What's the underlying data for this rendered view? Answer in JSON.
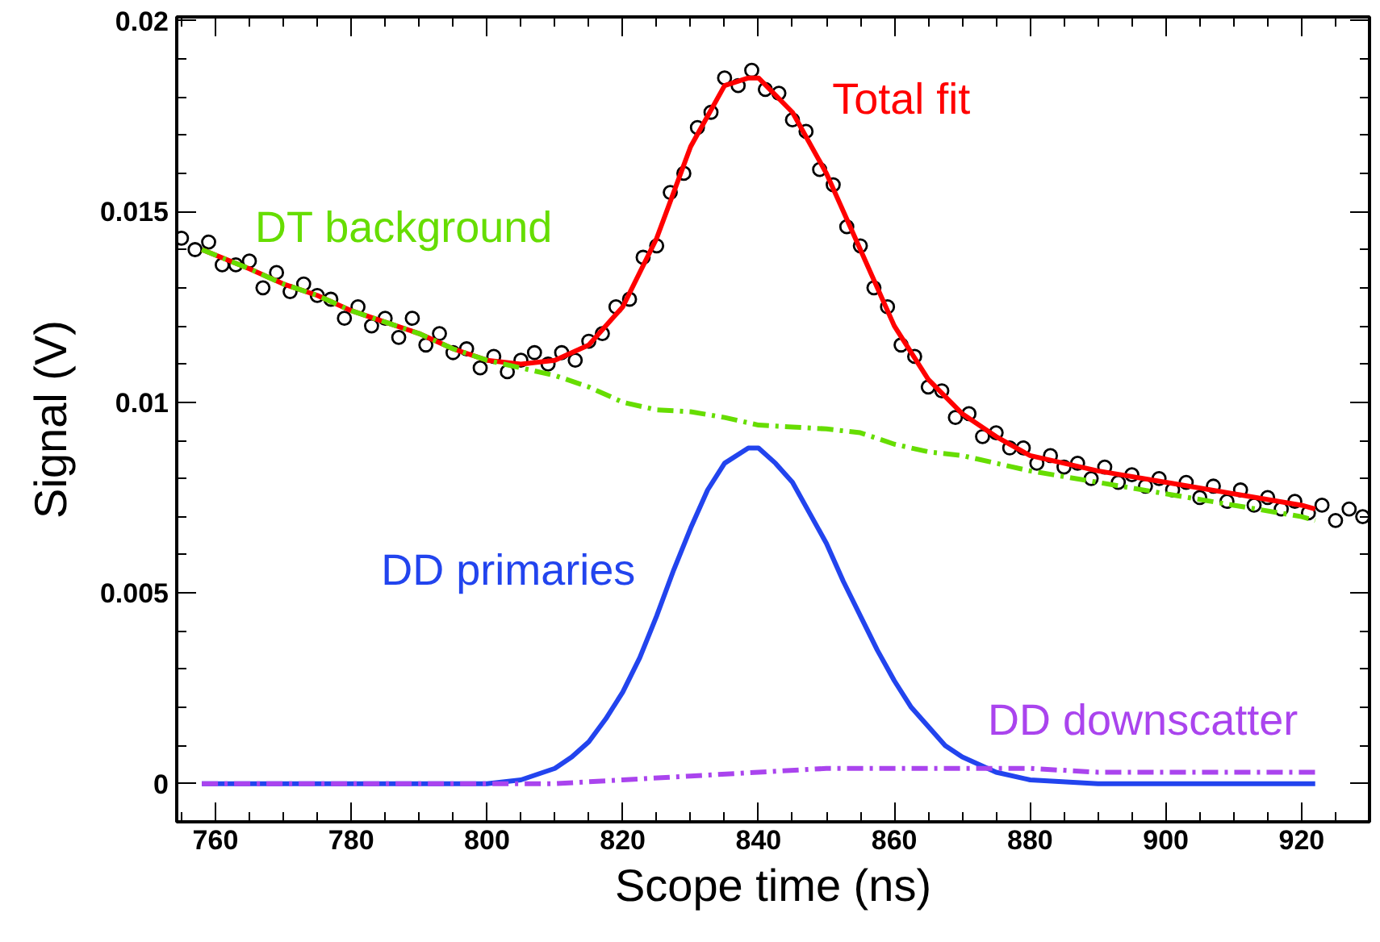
{
  "chart_data": {
    "type": "line",
    "xlabel": "Scope time (ns)",
    "ylabel": "Signal (V)",
    "xlim": [
      754.3,
      930
    ],
    "ylim": [
      -0.001,
      0.0201
    ],
    "xticks": [
      760,
      780,
      800,
      820,
      840,
      860,
      880,
      900,
      920
    ],
    "yticks": [
      0,
      0.005,
      0.01,
      0.015,
      0.02
    ],
    "grid": false,
    "series": [
      {
        "type": "scatter",
        "marker": "circle",
        "color": "#000000",
        "x": [
          755,
          757,
          759,
          761,
          763,
          765,
          767,
          769,
          771,
          773,
          775,
          777,
          779,
          781,
          783,
          785,
          787,
          789,
          791,
          793,
          795,
          797,
          799,
          801,
          803,
          805,
          807,
          809,
          811,
          813,
          815,
          817,
          819,
          821,
          823,
          825,
          827,
          829,
          831,
          833,
          835,
          837,
          839,
          841,
          843,
          845,
          847,
          849,
          851,
          853,
          855,
          857,
          859,
          861,
          863,
          865,
          867,
          869,
          871,
          873,
          875,
          877,
          879,
          881,
          883,
          885,
          887,
          889,
          891,
          893,
          895,
          897,
          899,
          901,
          903,
          905,
          907,
          909,
          911,
          913,
          915,
          917,
          919,
          921,
          923,
          925,
          927,
          929
        ],
        "values": [
          0.0143,
          0.014,
          0.0142,
          0.0136,
          0.0136,
          0.0137,
          0.013,
          0.0134,
          0.0129,
          0.0131,
          0.0128,
          0.0127,
          0.0122,
          0.0125,
          0.012,
          0.0122,
          0.0117,
          0.0122,
          0.0115,
          0.0118,
          0.0113,
          0.0114,
          0.0109,
          0.0112,
          0.0108,
          0.0111,
          0.0113,
          0.011,
          0.0113,
          0.0111,
          0.0116,
          0.0118,
          0.0125,
          0.0127,
          0.0138,
          0.0141,
          0.0155,
          0.016,
          0.0172,
          0.0176,
          0.0185,
          0.0183,
          0.0187,
          0.0182,
          0.0181,
          0.0174,
          0.0171,
          0.0161,
          0.0157,
          0.0146,
          0.0141,
          0.013,
          0.0125,
          0.0115,
          0.0112,
          0.0104,
          0.0103,
          0.0096,
          0.0097,
          0.0091,
          0.0092,
          0.0088,
          0.0088,
          0.0084,
          0.0086,
          0.0083,
          0.0084,
          0.008,
          0.0083,
          0.0079,
          0.0081,
          0.0078,
          0.008,
          0.0077,
          0.0079,
          0.0075,
          0.0078,
          0.0074,
          0.0077,
          0.0073,
          0.0075,
          0.0072,
          0.0074,
          0.0071,
          0.0073,
          0.0069,
          0.0072,
          0.007
        ]
      },
      {
        "name": "Total fit",
        "color": "#ff0000",
        "line_style": "solid",
        "x": [
          758,
          765,
          770,
          775,
          780,
          785,
          790,
          795,
          800,
          805,
          810,
          815,
          820,
          825,
          830,
          835,
          838.5,
          840,
          845,
          850,
          855,
          860,
          865,
          870,
          875,
          880,
          890,
          900,
          910,
          920,
          922
        ],
        "values": [
          0.014,
          0.0135,
          0.0131,
          0.0128,
          0.0124,
          0.0121,
          0.0118,
          0.0114,
          0.0111,
          0.011,
          0.0111,
          0.0115,
          0.0125,
          0.0143,
          0.0167,
          0.0183,
          0.0185,
          0.0185,
          0.0176,
          0.016,
          0.014,
          0.012,
          0.0106,
          0.0097,
          0.0091,
          0.0086,
          0.0082,
          0.0079,
          0.0076,
          0.0073,
          0.0072
        ]
      },
      {
        "name": "DT background",
        "color": "#66dd00",
        "line_style": "dashdot",
        "x": [
          758,
          765,
          770,
          775,
          780,
          785,
          790,
          795,
          800,
          805,
          810,
          815,
          820,
          825,
          830,
          835,
          840,
          845,
          850,
          855,
          860,
          865,
          870,
          875,
          880,
          890,
          900,
          910,
          920,
          922
        ],
        "values": [
          0.014,
          0.0135,
          0.0131,
          0.0128,
          0.0124,
          0.0121,
          0.0118,
          0.0114,
          0.0111,
          0.0109,
          0.0107,
          0.0104,
          0.01,
          0.0098,
          0.00975,
          0.0096,
          0.0094,
          0.00935,
          0.0093,
          0.0092,
          0.0089,
          0.0087,
          0.0086,
          0.0084,
          0.0082,
          0.0079,
          0.0076,
          0.0073,
          0.007,
          0.0069
        ]
      },
      {
        "name": "DD primaries",
        "color": "#2244ee",
        "line_style": "solid",
        "x": [
          758,
          780,
          800,
          805,
          810,
          812.5,
          815,
          817.5,
          820,
          822.5,
          825,
          827.5,
          830,
          832.5,
          835,
          838.5,
          840,
          842.5,
          845,
          847.5,
          850,
          852.5,
          855,
          857.5,
          860,
          862.5,
          865,
          867.5,
          870,
          872.5,
          875,
          880,
          890,
          922
        ],
        "values": [
          0,
          0,
          0,
          0.0001,
          0.0004,
          0.0007,
          0.0011,
          0.0017,
          0.0024,
          0.0033,
          0.0044,
          0.0056,
          0.0067,
          0.0077,
          0.0084,
          0.0088,
          0.0088,
          0.0084,
          0.0079,
          0.0071,
          0.0063,
          0.0053,
          0.0044,
          0.0035,
          0.0027,
          0.002,
          0.0015,
          0.001,
          0.0007,
          0.0005,
          0.0003,
          0.0001,
          0,
          0
        ]
      },
      {
        "name": "DD downscatter",
        "color": "#aa44ee",
        "line_style": "dashdot",
        "x": [
          758,
          800,
          810,
          820,
          830,
          840,
          850,
          860,
          870,
          880,
          890,
          900,
          910,
          922
        ],
        "values": [
          0,
          0,
          0,
          0.0001,
          0.0002,
          0.0003,
          0.0004,
          0.0004,
          0.0004,
          0.0004,
          0.0003,
          0.0003,
          0.0003,
          0.0003
        ]
      }
    ]
  }
}
